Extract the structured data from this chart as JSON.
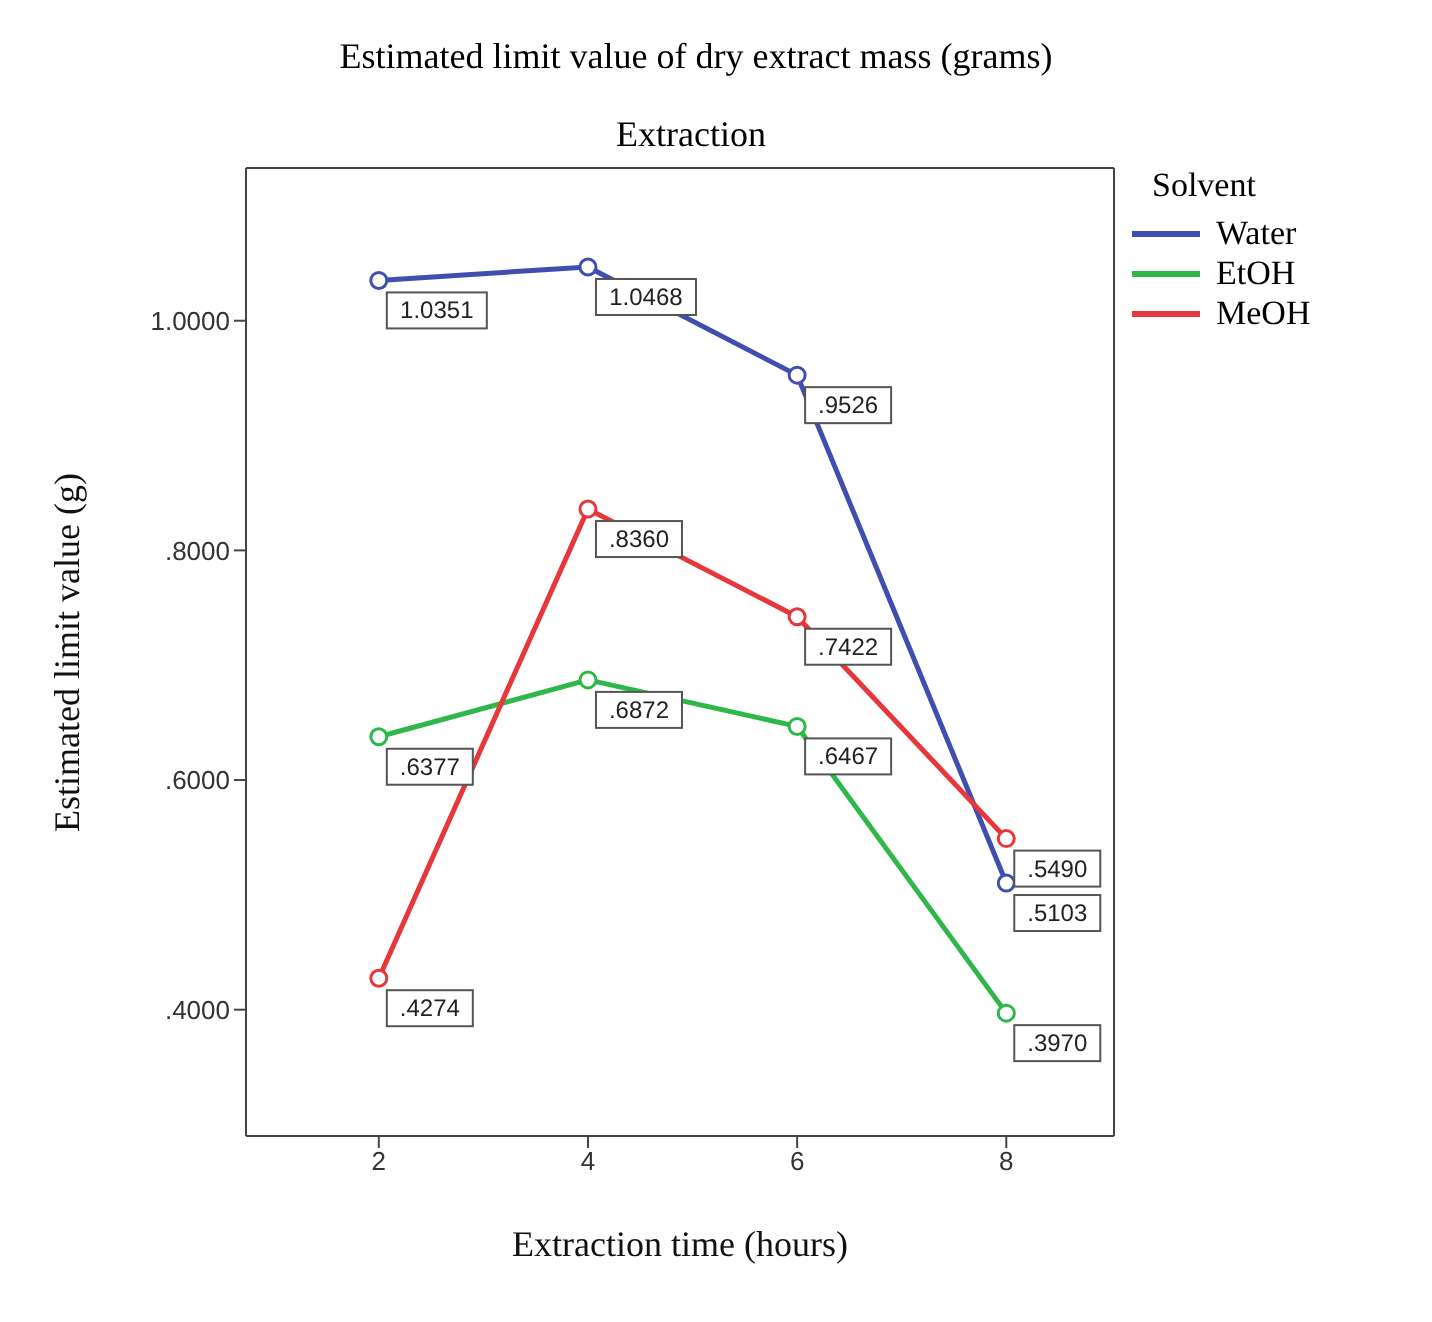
{
  "chart_data": {
    "type": "line",
    "title": "Estimated limit value of dry extract mass (grams)",
    "subtitle": "Extraction",
    "xlabel": "Extraction time (hours)",
    "ylabel": "Estimated limit value (g)",
    "legend_title": "Solvent",
    "x": [
      2,
      4,
      6,
      8
    ],
    "series": [
      {
        "name": "Water",
        "color": "#3f4fb0",
        "values": [
          1.0351,
          1.0468,
          0.9526,
          0.5103
        ],
        "value_labels": [
          "1.0351",
          "1.0468",
          ".9526",
          ".5103"
        ]
      },
      {
        "name": "EtOH",
        "color": "#2fb84a",
        "values": [
          0.6377,
          0.6872,
          0.6467,
          0.397
        ],
        "value_labels": [
          ".6377",
          ".6872",
          ".6467",
          ".3970"
        ]
      },
      {
        "name": "MeOH",
        "color": "#e8373a",
        "values": [
          0.4274,
          0.836,
          0.7422,
          0.549
        ],
        "value_labels": [
          ".4274",
          ".8360",
          ".7422",
          ".5490"
        ]
      }
    ],
    "xlim": [
      0.73,
      9.03
    ],
    "xticks": [
      2,
      4,
      6,
      8
    ],
    "ylim": [
      0.29,
      1.133
    ],
    "yticks": [
      {
        "value": 0.4,
        "label": ".4000"
      },
      {
        "value": 0.6,
        "label": ".6000"
      },
      {
        "value": 0.8,
        "label": ".8000"
      },
      {
        "value": 1.0,
        "label": "1.0000"
      }
    ],
    "grid": false,
    "legend": "right",
    "marker": "circle",
    "line_style": "solid"
  }
}
